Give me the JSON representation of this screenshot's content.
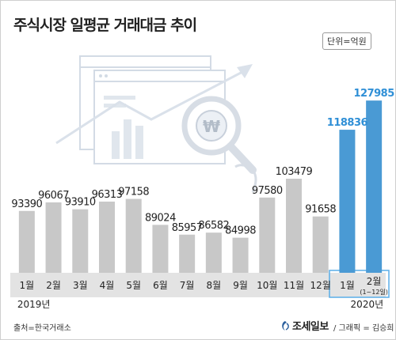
{
  "title": "주식시장 일평균 거래대금 추이",
  "unit": "단위=억원",
  "source": "출처=한국거래소",
  "brand": "조세일보",
  "credit": "/ 그래픽 = 김승희",
  "colors": {
    "gray_bar": "#c8c8c8",
    "blue_bar": "#4a9ad4",
    "blue_label": "#2f8fd6",
    "gray_label": "#222222",
    "axis_band": "#e3e3e3",
    "highlight_border": "#5aaee8",
    "illustration": "#cfd8e3"
  },
  "chart_data": {
    "type": "bar",
    "title": "주식시장 일평균 거래대금 추이",
    "unit": "단위=억원",
    "categories": [
      "1월",
      "2월",
      "3월",
      "4월",
      "5월",
      "6월",
      "7월",
      "8월",
      "9월",
      "10월",
      "11월",
      "12월",
      "1월",
      "2월"
    ],
    "category_sublabels": [
      "",
      "",
      "",
      "",
      "",
      "",
      "",
      "",
      "",
      "",
      "",
      "",
      "",
      "(1~12일)"
    ],
    "year_labels": [
      {
        "label": "2019년",
        "span": [
          0,
          11
        ]
      },
      {
        "label": "2020년",
        "span": [
          12,
          13
        ]
      }
    ],
    "values": [
      93390,
      96067,
      93910,
      96313,
      97158,
      89024,
      85957,
      86582,
      84998,
      97580,
      103479,
      91658,
      118836,
      127985
    ],
    "highlighted": [
      12,
      13
    ],
    "legend": "none",
    "grid": false,
    "ylim": [
      74000,
      131000
    ]
  }
}
